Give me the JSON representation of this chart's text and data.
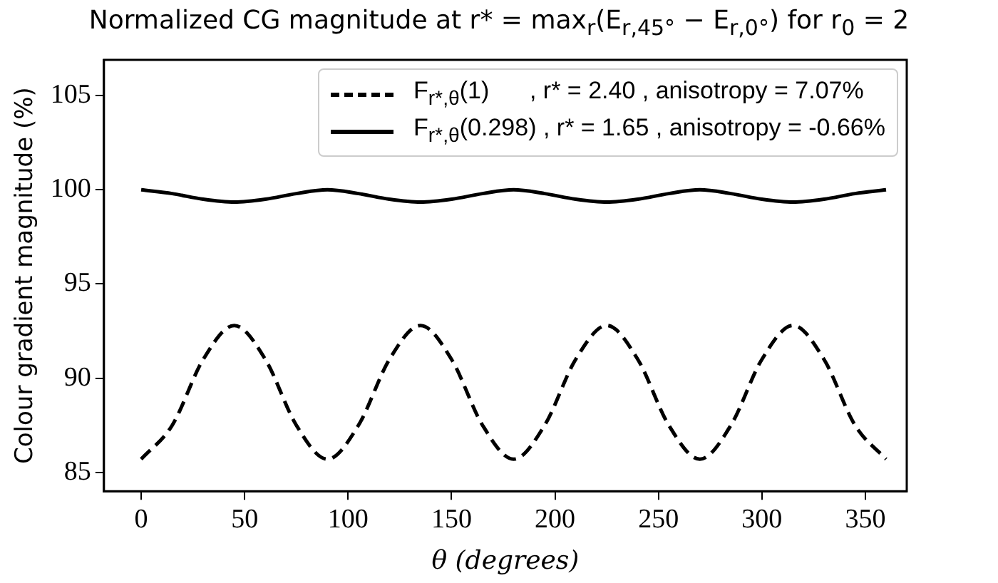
{
  "chart_data": {
    "type": "line",
    "title": "Normalized CG magnitude at r* = max$_{r}$(E$_{r,45°}$ − E$_{r,0°}$) for r$_{0}$ = 2",
    "xlabel": "θ (degrees)",
    "ylabel": "Colour gradient magnitude (%)",
    "x": [
      0,
      15,
      30,
      45,
      60,
      75,
      90,
      105,
      120,
      135,
      150,
      165,
      180,
      195,
      210,
      225,
      240,
      255,
      270,
      285,
      300,
      315,
      330,
      345,
      360
    ],
    "series": [
      {
        "name": "F$_{r*,θ}$(1)      , r* = 2.40 , anisotropy = 7.07%",
        "color": "#000000",
        "line_style": "dashed",
        "values": [
          85.7,
          87.5,
          91.0,
          92.8,
          91.0,
          87.5,
          85.7,
          87.5,
          91.0,
          92.8,
          91.0,
          87.5,
          85.7,
          87.5,
          91.0,
          92.8,
          91.0,
          87.5,
          85.7,
          87.5,
          91.0,
          92.8,
          91.0,
          87.5,
          85.7
        ]
      },
      {
        "name": "F$_{r*,θ}$(0.298) , r* = 1.65 , anisotropy = -0.66%",
        "color": "#000000",
        "line_style": "solid",
        "values": [
          100.0,
          99.8,
          99.5,
          99.35,
          99.5,
          99.8,
          100.0,
          99.8,
          99.5,
          99.35,
          99.5,
          99.8,
          100.0,
          99.8,
          99.5,
          99.35,
          99.5,
          99.8,
          100.0,
          99.8,
          99.5,
          99.35,
          99.5,
          99.8,
          100.0
        ]
      }
    ],
    "xlim": [
      -18,
      370
    ],
    "xticks": [
      0,
      50,
      100,
      150,
      200,
      250,
      300,
      350
    ],
    "ylim": [
      84,
      106.9
    ],
    "yticks": [
      85,
      90,
      95,
      100,
      105
    ],
    "grid": false,
    "legend": "top right",
    "marker": "none"
  }
}
